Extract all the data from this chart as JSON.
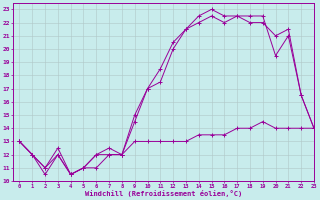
{
  "xlabel": "Windchill (Refroidissement éolien,°C)",
  "background_color": "#c8ecec",
  "line_color": "#990099",
  "grid_color": "#b0c8c8",
  "xlim": [
    -0.5,
    23
  ],
  "ylim": [
    10,
    23.5
  ],
  "xticks": [
    0,
    1,
    2,
    3,
    4,
    5,
    6,
    7,
    8,
    9,
    10,
    11,
    12,
    13,
    14,
    15,
    16,
    17,
    18,
    19,
    20,
    21,
    22,
    23
  ],
  "yticks": [
    10,
    11,
    12,
    13,
    14,
    15,
    16,
    17,
    18,
    19,
    20,
    21,
    22,
    23
  ],
  "line1_x": [
    0,
    1,
    2,
    3,
    4,
    5,
    6,
    7,
    8,
    9,
    10,
    11,
    12,
    13,
    14,
    15,
    16,
    17,
    18,
    19,
    20,
    21,
    22,
    23
  ],
  "line1_y": [
    13,
    12,
    10.5,
    12,
    10.5,
    11,
    11,
    12,
    12,
    13,
    13,
    13,
    13,
    13,
    13.5,
    13.5,
    13.5,
    14,
    14,
    14.5,
    14,
    14,
    14,
    14
  ],
  "line2_x": [
    0,
    1,
    2,
    3,
    4,
    5,
    6,
    7,
    8,
    9,
    10,
    11,
    12,
    13,
    14,
    15,
    16,
    17,
    18,
    19,
    20,
    21,
    22,
    23
  ],
  "line2_y": [
    13,
    12,
    11,
    12,
    10.5,
    11,
    12,
    12,
    12,
    15,
    17,
    18.5,
    20.5,
    21.5,
    22,
    22.5,
    22,
    22.5,
    22,
    22,
    21,
    21.5,
    16.5,
    14
  ],
  "line3_x": [
    0,
    1,
    2,
    3,
    4,
    5,
    6,
    7,
    8,
    9,
    10,
    11,
    12,
    13,
    14,
    15,
    16,
    17,
    18,
    19,
    20,
    21,
    22,
    23
  ],
  "line3_y": [
    13,
    12,
    11,
    12.5,
    10.5,
    11,
    12,
    12.5,
    12,
    14.5,
    17,
    17.5,
    20,
    21.5,
    22.5,
    23,
    22.5,
    22.5,
    22.5,
    22.5,
    19.5,
    21,
    16.5,
    14
  ]
}
